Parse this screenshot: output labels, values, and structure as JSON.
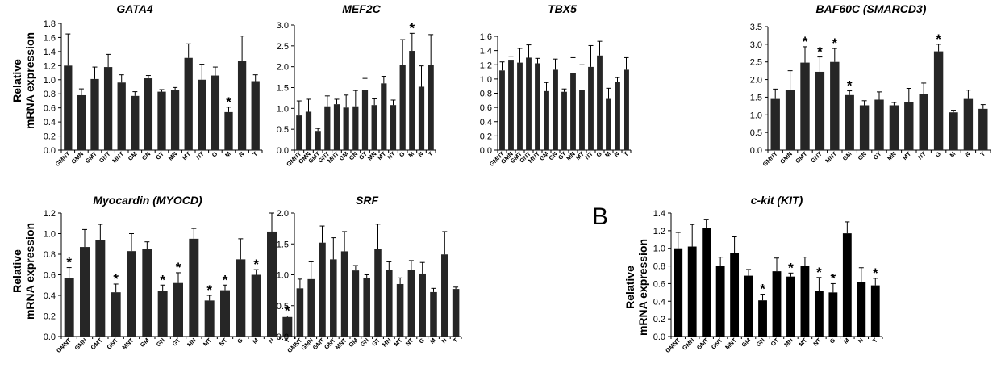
{
  "figure": {
    "ylabel_line1": "Relative",
    "ylabel_line2": "mRNA expression",
    "panel_b_label": "B",
    "sig_symbol": "*"
  },
  "chart_data": [
    {
      "type": "bar",
      "title": "GATA4",
      "categories": [
        "GMNT",
        "GMN",
        "GMT",
        "GNT",
        "MNT",
        "GM",
        "GN",
        "GT",
        "MN",
        "MT",
        "NT",
        "G",
        "M",
        "N",
        "T"
      ],
      "values": [
        1.2,
        0.78,
        1.01,
        1.18,
        0.96,
        0.77,
        1.02,
        0.83,
        0.85,
        1.31,
        1.0,
        1.06,
        0.54,
        1.27,
        0.98
      ],
      "errors": [
        0.45,
        0.09,
        0.17,
        0.18,
        0.11,
        0.06,
        0.04,
        0.03,
        0.04,
        0.2,
        0.22,
        0.12,
        0.07,
        0.35,
        0.09
      ],
      "significant": [
        false,
        false,
        false,
        false,
        false,
        false,
        false,
        false,
        false,
        false,
        false,
        false,
        true,
        false,
        false
      ],
      "ylim": [
        0,
        1.8
      ],
      "yticks": [
        "0.0",
        "0.2",
        "0.4",
        "0.6",
        "0.8",
        "1.0",
        "1.2",
        "1.4",
        "1.6",
        "1.8"
      ],
      "color": "#262626"
    },
    {
      "type": "bar",
      "title": "MEF2C",
      "categories": [
        "GMNT",
        "GMN",
        "GMT",
        "GNT",
        "MNT",
        "GM",
        "GN",
        "GT",
        "MN",
        "MT",
        "NT",
        "G",
        "M",
        "N",
        "T"
      ],
      "values": [
        0.83,
        0.92,
        0.46,
        1.05,
        1.1,
        1.02,
        1.05,
        1.45,
        1.08,
        1.6,
        1.08,
        2.05,
        2.38,
        1.52,
        2.05
      ],
      "errors": [
        0.35,
        0.3,
        0.06,
        0.25,
        0.12,
        0.3,
        0.38,
        0.27,
        0.15,
        0.17,
        0.12,
        0.6,
        0.42,
        0.5,
        0.72
      ],
      "significant": [
        false,
        false,
        false,
        false,
        false,
        false,
        false,
        false,
        false,
        false,
        false,
        false,
        true,
        false,
        false
      ],
      "ylim": [
        0,
        3.0
      ],
      "yticks": [
        "0.0",
        "0.5",
        "1.0",
        "1.5",
        "2.0",
        "2.5",
        "3.0"
      ],
      "color": "#262626"
    },
    {
      "type": "bar",
      "title": "TBX5",
      "categories": [
        "GMNT",
        "GMN",
        "GMT",
        "GNT",
        "MNT",
        "GM",
        "GN",
        "GT",
        "MN",
        "MT",
        "NT",
        "G",
        "M",
        "N",
        "T"
      ],
      "values": [
        1.12,
        1.27,
        1.23,
        1.3,
        1.22,
        0.83,
        1.13,
        0.82,
        1.08,
        0.85,
        1.17,
        1.33,
        0.72,
        0.96,
        1.13
      ],
      "errors": [
        0.12,
        0.05,
        0.2,
        0.18,
        0.07,
        0.12,
        0.15,
        0.04,
        0.22,
        0.35,
        0.3,
        0.2,
        0.15,
        0.06,
        0.17
      ],
      "significant": [
        false,
        false,
        false,
        false,
        false,
        false,
        false,
        false,
        false,
        false,
        false,
        false,
        false,
        false,
        false
      ],
      "ylim": [
        0,
        1.6
      ],
      "yticks": [
        "0.0",
        "0.2",
        "0.4",
        "0.6",
        "0.8",
        "1.0",
        "1.2",
        "1.4",
        "1.6"
      ],
      "color": "#262626"
    },
    {
      "type": "bar",
      "title": "BAF60C (SMARCD3)",
      "categories": [
        "GMNT",
        "GMN",
        "GMT",
        "GNT",
        "MNT",
        "GM",
        "GN",
        "GT",
        "MN",
        "MT",
        "NT",
        "G",
        "M",
        "N",
        "T"
      ],
      "values": [
        1.45,
        1.7,
        2.48,
        2.22,
        2.5,
        1.56,
        1.27,
        1.43,
        1.27,
        1.37,
        1.6,
        2.8,
        1.07,
        1.45,
        1.17
      ],
      "errors": [
        0.28,
        0.55,
        0.45,
        0.42,
        0.38,
        0.12,
        0.13,
        0.22,
        0.08,
        0.38,
        0.3,
        0.2,
        0.06,
        0.25,
        0.12
      ],
      "significant": [
        false,
        false,
        true,
        true,
        true,
        true,
        false,
        false,
        false,
        false,
        false,
        true,
        false,
        false,
        false
      ],
      "ylim": [
        0,
        3.5
      ],
      "yticks": [
        "0.0",
        "0.5",
        "1.0",
        "1.5",
        "2.0",
        "2.5",
        "3.0",
        "3.5"
      ],
      "color": "#262626"
    },
    {
      "type": "bar",
      "title": "Myocardin (MYOCD)",
      "categories": [
        "GMNT",
        "GMN",
        "GMT",
        "GNT",
        "MNT",
        "GM",
        "GN",
        "GT",
        "MN",
        "MT",
        "NT",
        "G",
        "M",
        "N",
        "T"
      ],
      "values": [
        0.57,
        0.87,
        0.94,
        0.43,
        0.83,
        0.85,
        0.44,
        0.52,
        0.95,
        0.35,
        0.45,
        0.75,
        0.6,
        1.02,
        0.19
      ],
      "errors": [
        0.1,
        0.17,
        0.15,
        0.08,
        0.17,
        0.07,
        0.06,
        0.1,
        0.1,
        0.05,
        0.05,
        0.2,
        0.05,
        0.18,
        0.01
      ],
      "significant": [
        true,
        false,
        false,
        true,
        false,
        false,
        true,
        true,
        false,
        true,
        true,
        false,
        true,
        false,
        true
      ],
      "ylim": [
        0,
        1.2
      ],
      "yticks": [
        "0.0",
        "0.2",
        "0.4",
        "0.6",
        "0.8",
        "1.0",
        "1.2"
      ],
      "color": "#262626"
    },
    {
      "type": "bar",
      "title": "SRF",
      "categories": [
        "GMNT",
        "GMN",
        "GMT",
        "GNT",
        "MNT",
        "GM",
        "GN",
        "GT",
        "MN",
        "MT",
        "NT",
        "G",
        "M",
        "N",
        "T"
      ],
      "values": [
        0.78,
        0.93,
        1.52,
        1.25,
        1.38,
        1.07,
        0.95,
        1.42,
        1.08,
        0.85,
        1.08,
        1.02,
        0.72,
        1.33,
        0.77
      ],
      "errors": [
        0.15,
        0.28,
        0.27,
        0.35,
        0.32,
        0.08,
        0.05,
        0.4,
        0.13,
        0.1,
        0.15,
        0.18,
        0.06,
        0.37,
        0.03
      ],
      "significant": [
        false,
        false,
        false,
        false,
        false,
        false,
        false,
        false,
        false,
        false,
        false,
        false,
        false,
        false,
        false
      ],
      "ylim": [
        0,
        2.0
      ],
      "yticks": [
        "0.0",
        "0.5",
        "1.0",
        "1.5",
        "2.0"
      ],
      "color": "#262626"
    },
    {
      "type": "bar",
      "title": "c-kit (KIT)",
      "categories": [
        "GMNT",
        "GMN",
        "GMT",
        "GNT",
        "MNT",
        "GM",
        "GN",
        "GT",
        "MN",
        "MT",
        "NT",
        "G",
        "M",
        "N",
        "T"
      ],
      "values": [
        1.0,
        1.02,
        1.23,
        0.8,
        0.95,
        0.69,
        0.41,
        0.74,
        0.68,
        0.8,
        0.52,
        0.5,
        1.17,
        0.62,
        0.58
      ],
      "errors": [
        0.18,
        0.25,
        0.1,
        0.1,
        0.18,
        0.07,
        0.07,
        0.15,
        0.04,
        0.1,
        0.15,
        0.1,
        0.13,
        0.16,
        0.08
      ],
      "significant": [
        false,
        false,
        false,
        false,
        false,
        false,
        true,
        false,
        true,
        false,
        true,
        true,
        false,
        false,
        true
      ],
      "ylim": [
        0,
        1.4
      ],
      "yticks": [
        "0.0",
        "0.2",
        "0.4",
        "0.6",
        "0.8",
        "1.0",
        "1.2",
        "1.4"
      ],
      "color": "#000000"
    }
  ]
}
